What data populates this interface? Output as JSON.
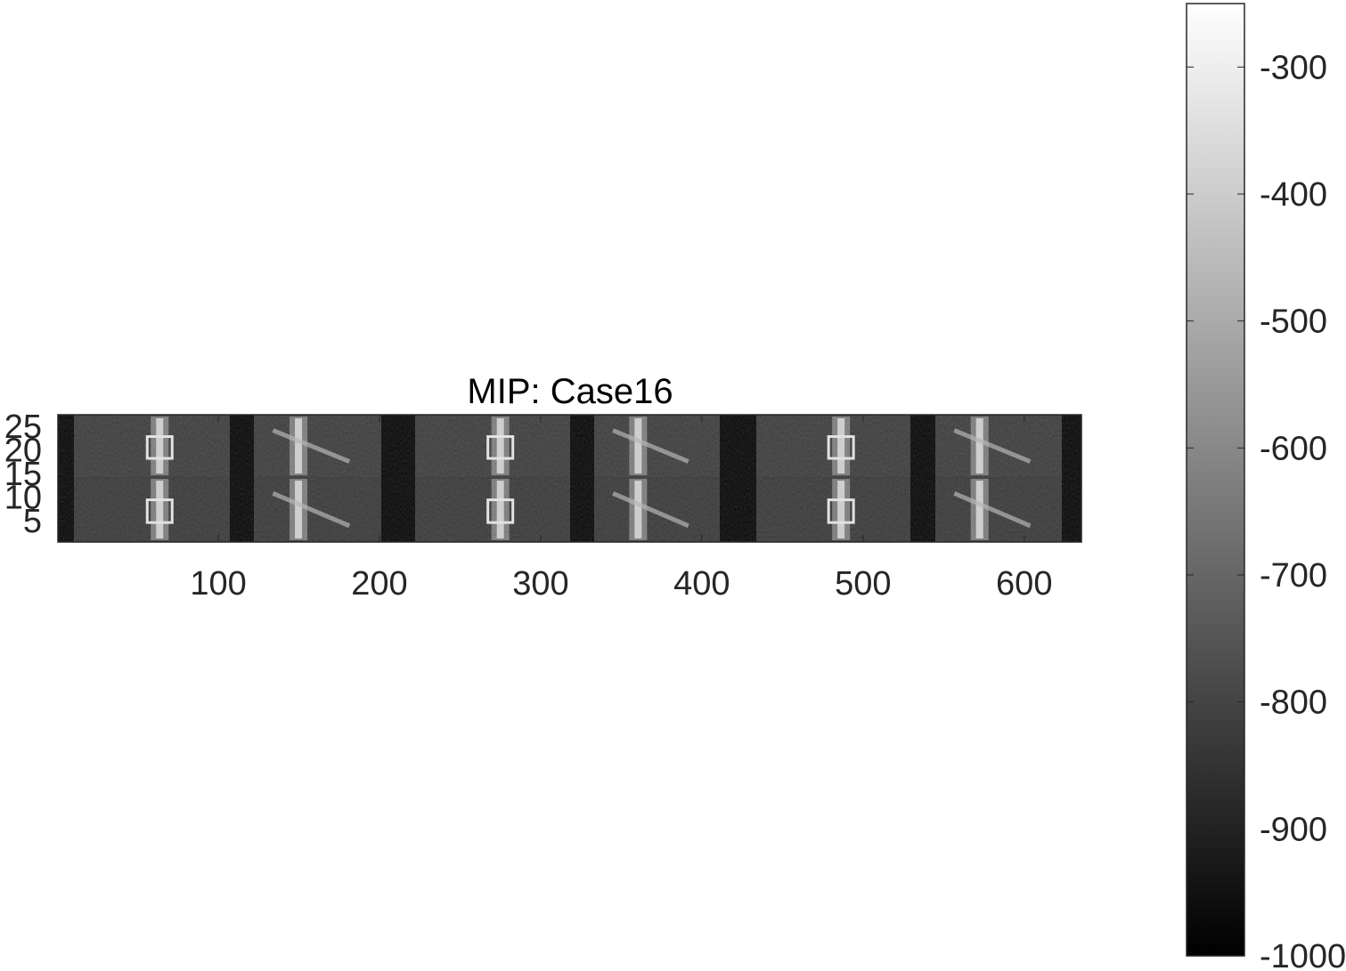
{
  "figure": {
    "title": "MIP: Case16",
    "image_description_type": "grayscale maximum intensity projection montage",
    "x_axis": {
      "limits": [
        0.5,
        635.5
      ],
      "ticks": [
        100,
        200,
        300,
        400,
        500,
        600
      ],
      "tick_labels": [
        "100",
        "200",
        "300",
        "400",
        "500",
        "600"
      ]
    },
    "y_axis": {
      "limits": [
        0.5,
        27.5
      ],
      "direction": "reversed-top-high",
      "ticks": [
        25,
        20,
        15,
        10,
        5
      ],
      "tick_labels": [
        "25",
        "20",
        "15",
        "10",
        "5"
      ]
    },
    "montage": {
      "panels": 6,
      "background_color": "#050505"
    },
    "colorbar": {
      "colormap": "gray",
      "limits": [
        -1000,
        -250
      ],
      "ticks": [
        -300,
        -400,
        -500,
        -600,
        -700,
        -800,
        -900,
        -1000
      ],
      "tick_labels": [
        "-300",
        "-400",
        "-500",
        "-600",
        "-700",
        "-800",
        "-900",
        "-1000"
      ],
      "low_color": "#000000",
      "high_color": "#ffffff"
    }
  }
}
